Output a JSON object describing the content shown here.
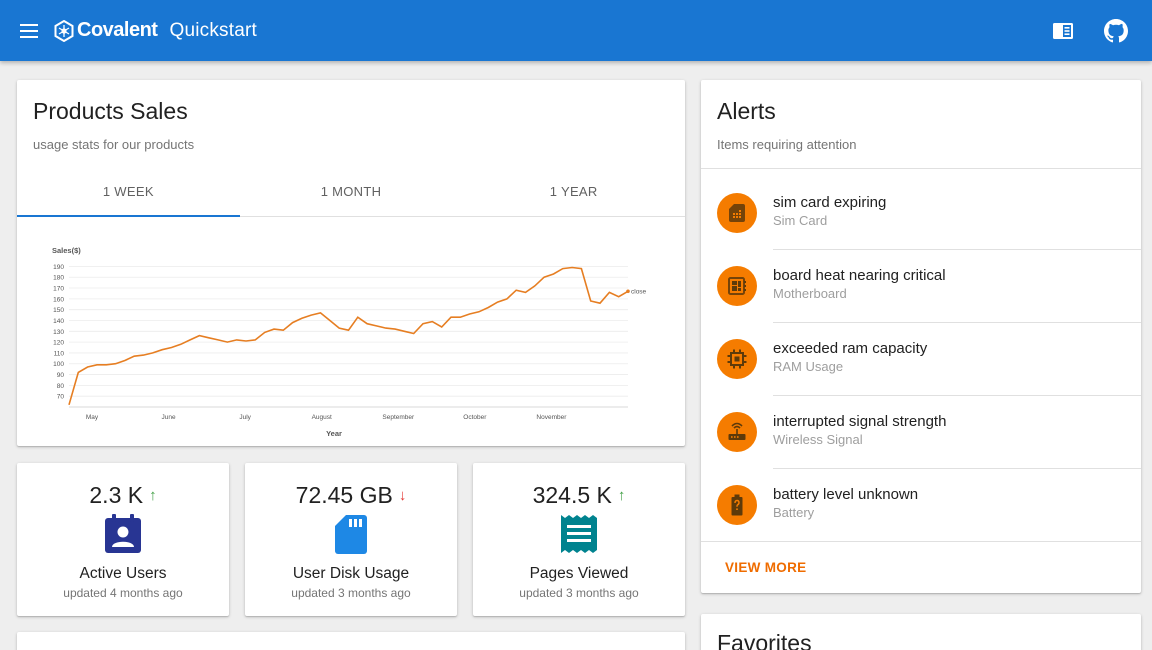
{
  "toolbar": {
    "brand": "Covalent",
    "title": "Quickstart",
    "color": "#1976d2",
    "menu_icon": "menu-icon",
    "docs_icon": "chrome-reader-icon",
    "github_icon": "github-icon"
  },
  "sales": {
    "title": "Products Sales",
    "subtitle": "usage stats for our products",
    "tabs": [
      "1 WEEK",
      "1 MONTH",
      "1 YEAR"
    ],
    "active_tab": 0
  },
  "chart_data": {
    "type": "line",
    "ylabel": "Sales($)",
    "xlabel": "Year",
    "ylim": [
      60,
      195
    ],
    "yticks": [
      70,
      80,
      90,
      100,
      110,
      120,
      130,
      140,
      150,
      160,
      170,
      180,
      190
    ],
    "xticks": [
      "May",
      "June",
      "July",
      "August",
      "September",
      "October",
      "November"
    ],
    "grid": true,
    "series": [
      {
        "name": "close",
        "color": "#e67e22",
        "values": [
          62,
          92,
          97,
          99,
          99,
          100,
          103,
          107,
          108,
          110,
          113,
          115,
          118,
          122,
          126,
          124,
          122,
          120,
          122,
          121,
          122,
          129,
          132,
          131,
          138,
          142,
          145,
          147,
          140,
          133,
          131,
          143,
          137,
          135,
          133,
          132,
          130,
          128,
          137,
          139,
          134,
          143,
          143,
          146,
          148,
          152,
          157,
          160,
          168,
          166,
          172,
          180,
          183,
          188,
          189,
          188,
          158,
          156,
          166,
          162,
          167
        ]
      }
    ]
  },
  "stats": [
    {
      "value": "2.3 K",
      "arrow": "↑",
      "trend": "up",
      "label": "Active Users",
      "updated": "updated 4 months ago",
      "icon": "account-box-icon",
      "icon_color": "#283593"
    },
    {
      "value": "72.45 GB",
      "arrow": "↓",
      "trend": "down",
      "label": "User Disk Usage",
      "updated": "updated 3 months ago",
      "icon": "sd-card-icon",
      "icon_color": "#1e88e5"
    },
    {
      "value": "324.5 K",
      "arrow": "↑",
      "trend": "up",
      "label": "Pages Viewed",
      "updated": "updated 3 months ago",
      "icon": "receipt-icon",
      "icon_color": "#00838f"
    }
  ],
  "alerts": {
    "title": "Alerts",
    "subtitle": "Items requiring attention",
    "accent": "#f57c00",
    "items": [
      {
        "title": "sim card expiring",
        "sub": "Sim Card",
        "icon": "sim-card-icon"
      },
      {
        "title": "board heat nearing critical",
        "sub": "Motherboard",
        "icon": "developer-board-icon"
      },
      {
        "title": "exceeded ram capacity",
        "sub": "RAM Usage",
        "icon": "memory-icon"
      },
      {
        "title": "interrupted signal strength",
        "sub": "Wireless Signal",
        "icon": "router-icon"
      },
      {
        "title": "battery level unknown",
        "sub": "Battery",
        "icon": "battery-unknown-icon"
      }
    ],
    "view_more": "VIEW MORE"
  },
  "favorites": {
    "title": "Favorites"
  }
}
